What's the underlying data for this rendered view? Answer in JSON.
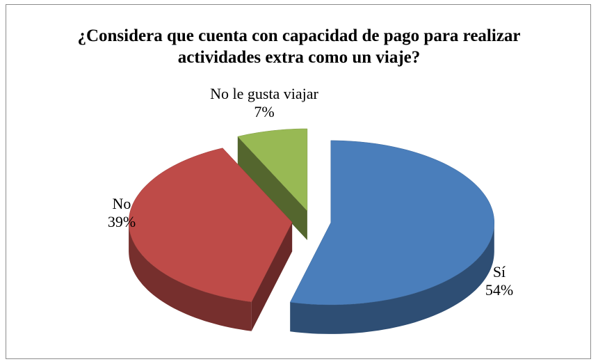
{
  "chart_data": {
    "type": "pie",
    "title": "¿Considera que cuenta con capacidad de pago para realizar actividades extra como un viaje?",
    "categories": [
      "Sí",
      "No",
      "No le gusta viajar"
    ],
    "values": [
      54,
      39,
      7
    ],
    "value_labels": [
      "54%",
      "39%",
      "7%"
    ],
    "colors": [
      "#4a7ebb",
      "#be4b48",
      "#98b954"
    ],
    "exploded": true,
    "three_d": true
  }
}
